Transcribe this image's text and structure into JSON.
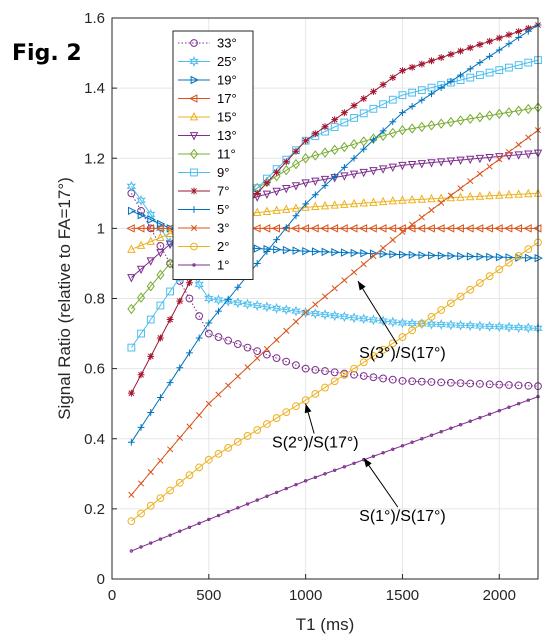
{
  "figure_label": "Fig. 2",
  "chart_data": {
    "type": "line",
    "xlabel": "T1 (ms)",
    "ylabel": "Signal Ratio (relative to FA=17°)",
    "xlim": [
      0,
      2200
    ],
    "ylim": [
      0,
      1.6
    ],
    "x_ticks": [
      0,
      500,
      1000,
      1500,
      2000
    ],
    "y_ticks": [
      0,
      0.2,
      0.4,
      0.6,
      0.8,
      1,
      1.2,
      1.4,
      1.6
    ],
    "grid": true,
    "legend_position": "upper-left",
    "series": [
      {
        "name": "33°",
        "color": "#7E2F8E",
        "line": "dotted",
        "marker": "circle",
        "x": [
          100,
          500,
          1000,
          1500,
          2200
        ],
        "y": [
          1.1,
          0.7,
          0.6,
          0.565,
          0.55
        ]
      },
      {
        "name": "25°",
        "color": "#4DBEEE",
        "line": "solid",
        "marker": "hexagram",
        "x": [
          100,
          500,
          1000,
          1500,
          2200
        ],
        "y": [
          1.12,
          0.8,
          0.76,
          0.73,
          0.715
        ]
      },
      {
        "name": "19°",
        "color": "#0072BD",
        "line": "solid",
        "marker": "triangle-right",
        "x": [
          100,
          500,
          1000,
          1500,
          2200
        ],
        "y": [
          1.05,
          0.95,
          0.935,
          0.925,
          0.915
        ]
      },
      {
        "name": "17°",
        "color": "#D95319",
        "line": "solid",
        "marker": "triangle-left",
        "x": [
          100,
          2200
        ],
        "y": [
          1.0,
          1.0
        ]
      },
      {
        "name": "15°",
        "color": "#EDB120",
        "line": "solid",
        "marker": "triangle-up",
        "x": [
          100,
          500,
          1000,
          1500,
          2200
        ],
        "y": [
          0.94,
          1.03,
          1.06,
          1.08,
          1.1
        ]
      },
      {
        "name": "13°",
        "color": "#7E2F8E",
        "line": "solid",
        "marker": "triangle-down",
        "x": [
          100,
          500,
          1000,
          1500,
          2200
        ],
        "y": [
          0.86,
          1.05,
          1.13,
          1.18,
          1.215
        ]
      },
      {
        "name": "11°",
        "color": "#77AC30",
        "line": "solid",
        "marker": "diamond",
        "x": [
          100,
          500,
          1000,
          1500,
          2200
        ],
        "y": [
          0.77,
          1.03,
          1.2,
          1.28,
          1.345
        ]
      },
      {
        "name": "9°",
        "color": "#4DBEEE",
        "line": "solid",
        "marker": "square",
        "x": [
          100,
          500,
          1000,
          1500,
          2200
        ],
        "y": [
          0.66,
          0.98,
          1.25,
          1.38,
          1.48
        ]
      },
      {
        "name": "7°",
        "color": "#A2142F",
        "line": "solid",
        "marker": "star",
        "x": [
          100,
          500,
          1000,
          1500,
          2200
        ],
        "y": [
          0.53,
          0.95,
          1.25,
          1.45,
          1.58
        ]
      },
      {
        "name": "5°",
        "color": "#0072BD",
        "line": "solid",
        "marker": "plus",
        "x": [
          100,
          500,
          1000,
          1500,
          2200
        ],
        "y": [
          0.39,
          0.73,
          1.07,
          1.33,
          1.58
        ]
      },
      {
        "name": "3°",
        "color": "#D95319",
        "line": "solid",
        "marker": "x",
        "x": [
          100,
          500,
          1000,
          1500,
          2200
        ],
        "y": [
          0.24,
          0.5,
          0.76,
          0.99,
          1.28
        ]
      },
      {
        "name": "2°",
        "color": "#EDB120",
        "line": "solid",
        "marker": "circle",
        "x": [
          100,
          500,
          1000,
          1500,
          2200
        ],
        "y": [
          0.165,
          0.34,
          0.51,
          0.69,
          0.96
        ]
      },
      {
        "name": "1°",
        "color": "#7E2F8E",
        "line": "solid",
        "marker": "point",
        "x": [
          100,
          500,
          1000,
          1500,
          2200
        ],
        "y": [
          0.08,
          0.17,
          0.28,
          0.38,
          0.52
        ]
      }
    ],
    "annotations": [
      {
        "text": "S(3°)/S(17°)",
        "text_at": [
          1500,
          0.63
        ],
        "arrow_to": [
          1270,
          0.85
        ]
      },
      {
        "text": "S(2°)/S(17°)",
        "text_at": [
          1050,
          0.375
        ],
        "arrow_to": [
          1000,
          0.5
        ]
      },
      {
        "text": "S(1°)/S(17°)",
        "text_at": [
          1500,
          0.165
        ],
        "arrow_to": [
          1300,
          0.345
        ]
      }
    ]
  }
}
